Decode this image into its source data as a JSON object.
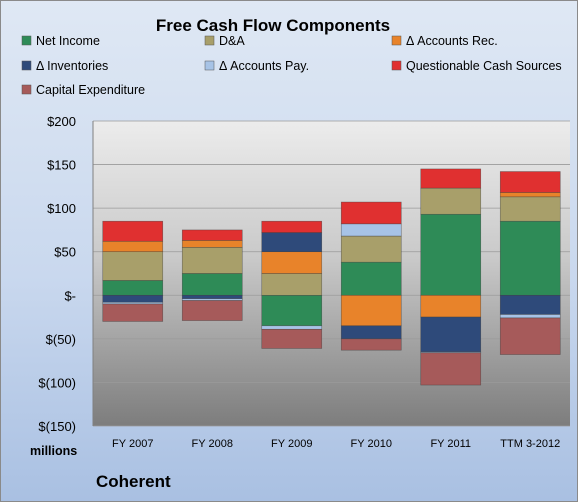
{
  "chart_data": {
    "type": "bar",
    "stacked": true,
    "title": "Free Cash Flow Components",
    "units_label": "millions",
    "company": "Coherent",
    "categories": [
      "FY 2007",
      "FY 2008",
      "FY 2009",
      "FY 2010",
      "FY 2011",
      "TTM 3-2012"
    ],
    "ylim": [
      -150,
      200
    ],
    "yticks": [
      200,
      150,
      100,
      50,
      0,
      -50,
      -100,
      -150
    ],
    "ytick_labels": [
      "$200",
      "$150",
      "$100",
      "$50",
      "$-",
      "$(50)",
      "$(100)",
      "$(150)"
    ],
    "grid": true,
    "legend_position": "top",
    "series": [
      {
        "name": "Net Income",
        "color": "#2e8b57",
        "values": [
          17,
          25,
          -35,
          38,
          93,
          85
        ]
      },
      {
        "name": "D&A",
        "color": "#a89f6a",
        "values": [
          33,
          30,
          25,
          30,
          30,
          28
        ]
      },
      {
        "name": "Δ Accounts Rec.",
        "color": "#e8832a",
        "values": [
          12,
          8,
          25,
          -35,
          -25,
          5
        ]
      },
      {
        "name": "Δ Inventories",
        "color": "#2e4a7a",
        "values": [
          -8,
          -4,
          22,
          -15,
          -40,
          -22
        ]
      },
      {
        "name": "Δ Accounts Pay.",
        "color": "#a7c3e6",
        "values": [
          -2,
          -2,
          -4,
          14,
          -1,
          -4
        ]
      },
      {
        "name": "Questionable Cash Sources",
        "color": "#e03030",
        "values": [
          23,
          12,
          13,
          25,
          22,
          24
        ]
      },
      {
        "name": "Capital Expenditure",
        "color": "#a65a5a",
        "values": [
          -20,
          -23,
          -22,
          -13,
          -37,
          -42
        ]
      }
    ]
  }
}
